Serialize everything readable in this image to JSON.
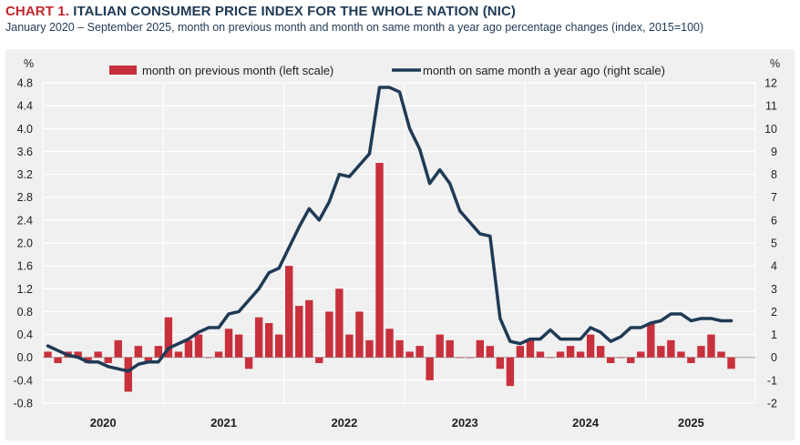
{
  "header": {
    "chart_number": "CHART 1.",
    "title": "ITALIAN CONSUMER PRICE INDEX FOR THE WHOLE NATION (NIC)",
    "subtitle": "January 2020 – September 2025, month on previous month and month on same month a year ago percentage changes (index, 2015=100)"
  },
  "colors": {
    "bar": "#c8303c",
    "line": "#1f3a55",
    "panel_bg": "#f0f0f0",
    "grid": "#ffffff"
  },
  "chart_data": {
    "type": "bar",
    "title": "ITALIAN CONSUMER PRICE INDEX FOR THE WHOLE NATION (NIC)",
    "left_axis": {
      "unit": "%",
      "range": [
        -0.8,
        4.8
      ],
      "ticks": [
        "-0.8",
        "-0.4",
        "0.0",
        "0.4",
        "0.8",
        "1.2",
        "1.6",
        "2.0",
        "2.4",
        "2.8",
        "3.2",
        "3.6",
        "4.0",
        "4.4",
        "4.8"
      ]
    },
    "right_axis": {
      "unit": "%",
      "range": [
        -2,
        12
      ],
      "ticks": [
        "-2",
        "-1",
        "0",
        "1",
        "2",
        "3",
        "4",
        "5",
        "6",
        "7",
        "8",
        "9",
        "10",
        "11",
        "12"
      ]
    },
    "x_axis": {
      "years": [
        "2020",
        "2021",
        "2022",
        "2023",
        "2024",
        "2025"
      ]
    },
    "grid": true,
    "legend_position": "top",
    "series": [
      {
        "name": "month on previous month (left scale)",
        "type": "bar",
        "axis": "left",
        "values": [
          0.1,
          -0.1,
          0.1,
          0.1,
          -0.1,
          0.1,
          -0.1,
          0.3,
          -0.6,
          0.2,
          -0.1,
          0.2,
          0.7,
          0.1,
          0.3,
          0.4,
          0.0,
          0.1,
          0.5,
          0.4,
          -0.2,
          0.7,
          0.6,
          0.4,
          1.6,
          0.9,
          1.0,
          -0.1,
          0.8,
          1.2,
          0.4,
          0.8,
          0.3,
          3.4,
          0.5,
          0.3,
          0.1,
          0.2,
          -0.4,
          0.4,
          0.3,
          0.0,
          0.0,
          0.3,
          0.2,
          -0.2,
          -0.5,
          0.2,
          0.3,
          0.1,
          0.0,
          0.1,
          0.2,
          0.1,
          0.4,
          0.2,
          -0.1,
          0.0,
          -0.1,
          0.1,
          0.6,
          0.2,
          0.3,
          0.1,
          -0.1,
          0.2,
          0.4,
          0.1,
          -0.2
        ]
      },
      {
        "name": "month on same month a year ago (right scale)",
        "type": "line",
        "axis": "right",
        "values": [
          0.5,
          0.3,
          0.1,
          0.0,
          -0.2,
          -0.2,
          -0.4,
          -0.5,
          -0.6,
          -0.3,
          -0.2,
          -0.2,
          0.4,
          0.6,
          0.8,
          1.1,
          1.3,
          1.3,
          1.9,
          2.0,
          2.5,
          3.0,
          3.7,
          3.9,
          4.8,
          5.7,
          6.5,
          6.0,
          6.8,
          8.0,
          7.9,
          8.4,
          8.9,
          11.8,
          11.8,
          11.6,
          10.0,
          9.1,
          7.6,
          8.2,
          7.6,
          6.4,
          5.9,
          5.4,
          5.3,
          1.7,
          0.7,
          0.6,
          0.8,
          0.8,
          1.2,
          0.8,
          0.8,
          0.8,
          1.3,
          1.1,
          0.7,
          0.9,
          1.3,
          1.3,
          1.5,
          1.6,
          1.9,
          1.9,
          1.6,
          1.7,
          1.7,
          1.6,
          1.6
        ]
      }
    ]
  }
}
